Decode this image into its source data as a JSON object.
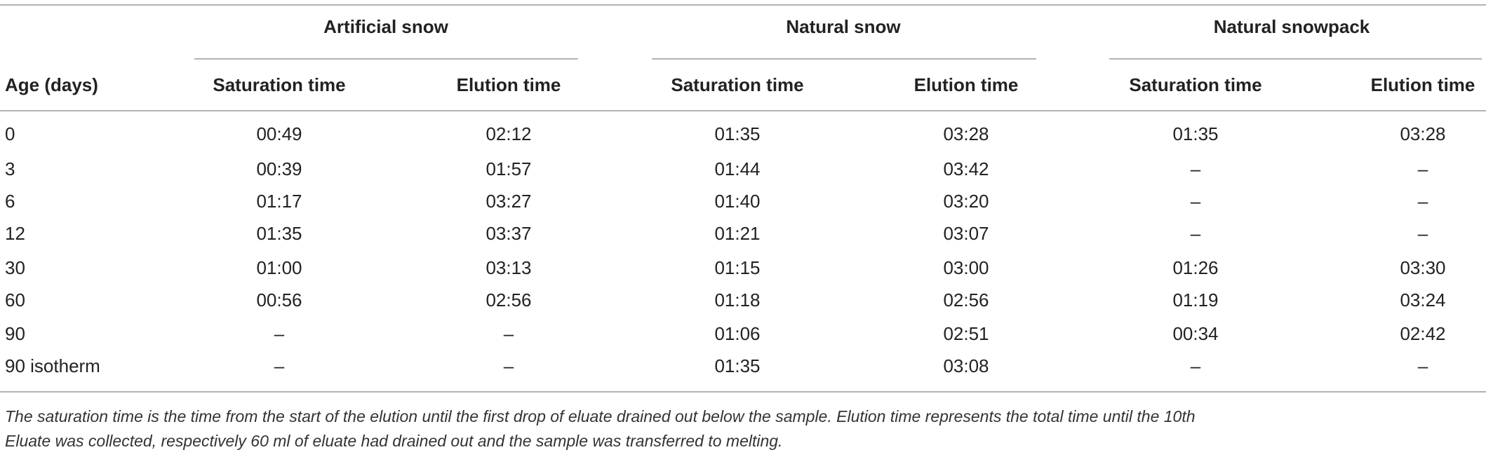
{
  "table": {
    "group_headers": [
      "Artificial snow",
      "Natural snow",
      "Natural snowpack"
    ],
    "columns": [
      "Age (days)",
      "Saturation time",
      "Elution time",
      "Saturation time",
      "Elution time",
      "Saturation time",
      "Elution time"
    ],
    "rows": [
      [
        "0",
        "00:49",
        "02:12",
        "01:35",
        "03:28",
        "01:35",
        "03:28"
      ],
      [
        "3",
        "00:39",
        "01:57",
        "01:44",
        "03:42",
        "–",
        "–"
      ],
      [
        "6",
        "01:17",
        "03:27",
        "01:40",
        "03:20",
        "–",
        "–"
      ],
      [
        "12",
        "01:35",
        "03:37",
        "01:21",
        "03:07",
        "–",
        "–"
      ],
      [
        "30",
        "01:00",
        "03:13",
        "01:15",
        "03:00",
        "01:26",
        "03:30"
      ],
      [
        "60",
        "00:56",
        "02:56",
        "01:18",
        "02:56",
        "01:19",
        "03:24"
      ],
      [
        "90",
        "–",
        "–",
        "01:06",
        "02:51",
        "00:34",
        "02:42"
      ],
      [
        "90 isotherm",
        "–",
        "–",
        "01:35",
        "03:08",
        "–",
        "–"
      ]
    ]
  },
  "footnote": [
    "The saturation time is the time from the start of the elution until the first drop of eluate drained out below the sample. Elution time represents the total time until the 10th",
    "Eluate was collected, respectively 60 ml of eluate had drained out and the sample was transferred to melting."
  ]
}
